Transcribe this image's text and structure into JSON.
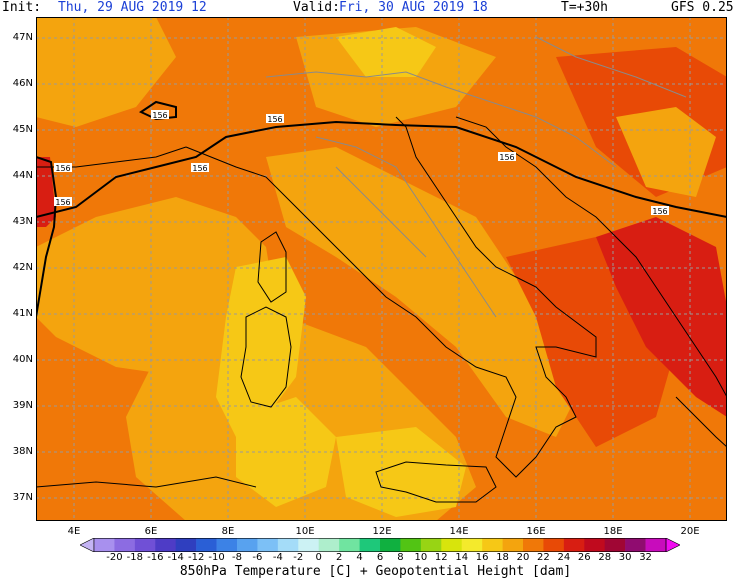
{
  "header": {
    "init_label": "Init:",
    "init_value": "Thu, 29 AUG 2019  12",
    "valid_label": "Valid:",
    "valid_value": "Fri, 30 AUG 2019  18",
    "lead": "T=+30h",
    "model": "GFS 0.25"
  },
  "lat_labels": [
    "47N",
    "46N",
    "45N",
    "44N",
    "43N",
    "42N",
    "41N",
    "40N",
    "39N",
    "38N",
    "37N"
  ],
  "lon_labels": [
    "4E",
    "6E",
    "8E",
    "10E",
    "12E",
    "14E",
    "16E",
    "18E",
    "20E"
  ],
  "contour_label": "156",
  "colorbar": {
    "levels": [
      "-20",
      "-18",
      "-16",
      "-14",
      "-12",
      "-10",
      "-8",
      "-6",
      "-4",
      "-2",
      "0",
      "2",
      "4",
      "6",
      "8",
      "10",
      "12",
      "14",
      "16",
      "18",
      "20",
      "22",
      "24",
      "26",
      "28",
      "30",
      "32"
    ],
    "colors": [
      "#c4b4f4",
      "#a890ee",
      "#8c6ce2",
      "#7050d6",
      "#4e3cc6",
      "#2f3fbf",
      "#2a5fd6",
      "#3c82e6",
      "#58a2ef",
      "#7cc0f6",
      "#a4dcf8",
      "#ccf2f4",
      "#aeeecc",
      "#70e4a0",
      "#1ec87a",
      "#10b040",
      "#52c414",
      "#98d414",
      "#d8e40c",
      "#f4ea2c",
      "#f6c816",
      "#f4a40e",
      "#f07808",
      "#e84a06",
      "#d81e12",
      "#c00a1e",
      "#a00634",
      "#900c70",
      "#c80cbc",
      "#f00cf0"
    ]
  },
  "footer": "850hPa Temperature [C] + Geopotential Height [dam]"
}
